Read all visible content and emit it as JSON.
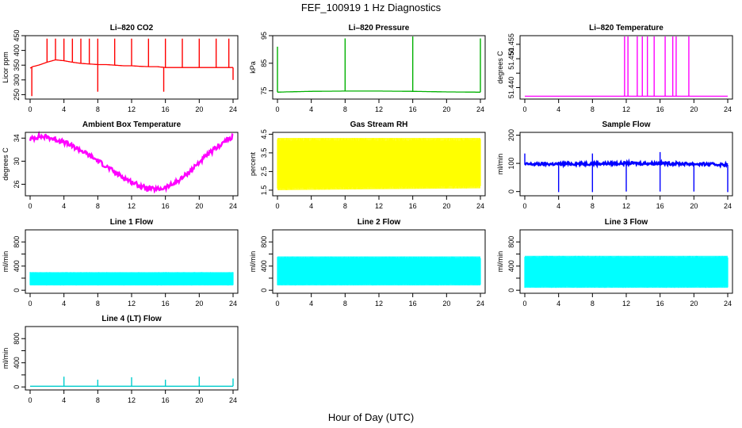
{
  "figure": {
    "title": "FEF_100919  1 Hz Diagnostics",
    "xlabel": "Hour of Day (UTC)"
  },
  "chart_data": [
    {
      "type": "line",
      "title": "Li–820 CO2",
      "ylabel": "Licor ppm",
      "color": "#ff0000",
      "xlim": [
        0,
        24
      ],
      "xticks": [
        0,
        4,
        8,
        12,
        16,
        20,
        24
      ],
      "ylim": [
        235,
        450
      ],
      "yticks": [
        250,
        300,
        350,
        400,
        450
      ],
      "grid": false,
      "x": [
        0,
        0.3,
        1,
        2,
        3,
        4,
        5,
        6,
        7,
        8,
        9,
        10,
        11,
        12,
        13,
        14,
        15,
        16,
        17,
        18,
        19,
        20,
        21,
        22,
        23,
        24
      ],
      "y": [
        340,
        345,
        350,
        360,
        368,
        365,
        360,
        356,
        354,
        352,
        352,
        350,
        348,
        348,
        346,
        345,
        345,
        342,
        342,
        342,
        342,
        342,
        342,
        342,
        342,
        342
      ],
      "spikes": [
        {
          "x": 2,
          "y": 440
        },
        {
          "x": 3,
          "y": 440
        },
        {
          "x": 4,
          "y": 440
        },
        {
          "x": 5,
          "y": 440
        },
        {
          "x": 6,
          "y": 440
        },
        {
          "x": 7,
          "y": 440
        },
        {
          "x": 8,
          "y": 440
        },
        {
          "x": 10,
          "y": 440
        },
        {
          "x": 12,
          "y": 440
        },
        {
          "x": 14,
          "y": 440
        },
        {
          "x": 16,
          "y": 440
        },
        {
          "x": 18,
          "y": 440
        },
        {
          "x": 20,
          "y": 440
        },
        {
          "x": 22,
          "y": 440
        },
        {
          "x": 23.5,
          "y": 440
        }
      ],
      "dips": [
        {
          "x": 0.2,
          "y": 245
        },
        {
          "x": 8,
          "y": 260
        },
        {
          "x": 15.8,
          "y": 260
        },
        {
          "x": 24,
          "y": 300
        }
      ]
    },
    {
      "type": "line",
      "title": "Li–820 Pressure",
      "ylabel": "kPa",
      "color": "#00b000",
      "xlim": [
        0,
        24
      ],
      "xticks": [
        0,
        4,
        8,
        12,
        16,
        20,
        24
      ],
      "ylim": [
        72,
        95
      ],
      "yticks": [
        75,
        85,
        95
      ],
      "grid": false,
      "x": [
        0,
        1,
        4,
        8,
        12,
        16,
        20,
        24
      ],
      "y": [
        74.5,
        74.6,
        74.8,
        74.9,
        74.9,
        74.8,
        74.6,
        74.5
      ],
      "spikes": [
        {
          "x": 0,
          "y": 91
        },
        {
          "x": 8,
          "y": 94
        },
        {
          "x": 16,
          "y": 95
        },
        {
          "x": 24,
          "y": 94
        }
      ],
      "dips": []
    },
    {
      "type": "line",
      "title": "Li–820 Temperature",
      "ylabel": "degrees C",
      "color": "#ff00ff",
      "xlim": [
        0,
        24
      ],
      "xticks": [
        0,
        4,
        8,
        12,
        16,
        20,
        24
      ],
      "ylim": [
        51.436,
        51.458
      ],
      "yticks": [
        51.44,
        51.445,
        51.45,
        51.455
      ],
      "yticklabels": [
        "51.440",
        "",
        "51.450",
        "51.455"
      ],
      "grid": false,
      "x": [
        0,
        24
      ],
      "y": [
        51.437,
        51.437
      ],
      "spikes": [
        {
          "x": 11.8,
          "y": 51.458
        },
        {
          "x": 12.2,
          "y": 51.458
        },
        {
          "x": 13.3,
          "y": 51.458
        },
        {
          "x": 13.9,
          "y": 51.458
        },
        {
          "x": 14.5,
          "y": 51.458
        },
        {
          "x": 15.3,
          "y": 51.458
        },
        {
          "x": 16.6,
          "y": 51.458
        },
        {
          "x": 17.5,
          "y": 51.458
        },
        {
          "x": 17.9,
          "y": 51.458
        },
        {
          "x": 19.4,
          "y": 51.458
        }
      ],
      "dips": []
    },
    {
      "type": "line",
      "title": "Ambient Box Temperature",
      "ylabel": "degrees C",
      "color": "#ff00ff",
      "xlim": [
        0,
        24
      ],
      "xticks": [
        0,
        4,
        8,
        12,
        16,
        20,
        24
      ],
      "ylim": [
        24,
        35
      ],
      "yticks": [
        26,
        30,
        34
      ],
      "grid": false,
      "x": [
        0,
        1,
        2,
        3,
        4,
        5,
        6,
        7,
        8,
        9,
        10,
        11,
        12,
        13,
        14,
        15,
        16,
        17,
        18,
        19,
        20,
        21,
        22,
        23,
        24
      ],
      "y": [
        33.8,
        34.3,
        34.2,
        33.8,
        33.3,
        32.6,
        31.9,
        31.0,
        30.1,
        29.1,
        28.1,
        27.2,
        26.4,
        25.7,
        25.2,
        25.1,
        25.4,
        26.1,
        27.1,
        28.4,
        29.8,
        31.1,
        32.3,
        33.4,
        34.3
      ],
      "noise": 0.8,
      "spikes": [],
      "dips": []
    },
    {
      "type": "area",
      "title": "Gas Stream RH",
      "ylabel": "percent",
      "color": "#ffff00",
      "xlim": [
        0,
        24
      ],
      "xticks": [
        0,
        4,
        8,
        12,
        16,
        20,
        24
      ],
      "ylim": [
        1.2,
        4.6
      ],
      "yticks": [
        1.5,
        2.5,
        3.5,
        4.5
      ],
      "grid": false,
      "x": [
        0,
        24
      ],
      "upper": [
        4.3,
        4.3
      ],
      "lower": [
        1.5,
        1.6
      ],
      "spikes": [],
      "dips": []
    },
    {
      "type": "line",
      "title": "Sample Flow",
      "ylabel": "ml/min",
      "color": "#0000ff",
      "xlim": [
        0,
        24
      ],
      "xticks": [
        0,
        4,
        8,
        12,
        16,
        20,
        24
      ],
      "ylim": [
        -15,
        210
      ],
      "yticks": [
        0,
        100,
        200
      ],
      "grid": false,
      "x": [
        0,
        4,
        8,
        12,
        16,
        20,
        24
      ],
      "y": [
        97,
        98,
        99,
        100,
        100,
        98,
        95
      ],
      "noise": 10,
      "spikes": [
        {
          "x": 0,
          "y": 135
        },
        {
          "x": 8,
          "y": 135
        },
        {
          "x": 16,
          "y": 140
        }
      ],
      "dips": [
        {
          "x": 4,
          "y": -2
        },
        {
          "x": 8,
          "y": -2
        },
        {
          "x": 12,
          "y": 0
        },
        {
          "x": 16,
          "y": 0
        },
        {
          "x": 20,
          "y": 0
        },
        {
          "x": 24,
          "y": -2
        }
      ]
    },
    {
      "type": "area",
      "title": "Line 1 Flow",
      "ylabel": "ml/min",
      "color": "#00ffff",
      "xlim": [
        0,
        24
      ],
      "xticks": [
        0,
        4,
        8,
        12,
        16,
        20,
        24
      ],
      "ylim": [
        -50,
        1000
      ],
      "yticks": [
        0,
        200,
        400,
        600,
        800
      ],
      "yticklabels": [
        "0",
        "",
        "400",
        "",
        "800"
      ],
      "grid": false,
      "x": [
        0,
        24
      ],
      "upper": [
        300,
        300
      ],
      "lower": [
        80,
        80
      ],
      "spikes": [],
      "dips": []
    },
    {
      "type": "area",
      "title": "Line 2 Flow",
      "ylabel": "ml/min",
      "color": "#00ffff",
      "xlim": [
        0,
        24
      ],
      "xticks": [
        0,
        4,
        8,
        12,
        16,
        20,
        24
      ],
      "ylim": [
        -50,
        1000
      ],
      "yticks": [
        0,
        200,
        400,
        600,
        800
      ],
      "yticklabels": [
        "0",
        "",
        "400",
        "",
        "800"
      ],
      "grid": false,
      "x": [
        0,
        24
      ],
      "upper": [
        560,
        560
      ],
      "lower": [
        80,
        80
      ],
      "spikes": [],
      "dips": []
    },
    {
      "type": "area",
      "title": "Line 3 Flow",
      "ylabel": "ml/min",
      "color": "#00ffff",
      "xlim": [
        0,
        24
      ],
      "xticks": [
        0,
        4,
        8,
        12,
        16,
        20,
        24
      ],
      "ylim": [
        -50,
        1000
      ],
      "yticks": [
        0,
        200,
        400,
        600,
        800
      ],
      "yticklabels": [
        "0",
        "",
        "400",
        "",
        "800"
      ],
      "grid": false,
      "x": [
        0,
        24
      ],
      "upper": [
        570,
        570
      ],
      "lower": [
        40,
        40
      ],
      "spikes": [],
      "dips": []
    },
    {
      "type": "line",
      "title": "Line 4 (LT) Flow",
      "ylabel": "ml/min",
      "color": "#00cccc",
      "xlim": [
        0,
        24
      ],
      "xticks": [
        0,
        4,
        8,
        12,
        16,
        20,
        24
      ],
      "ylim": [
        -50,
        1000
      ],
      "yticks": [
        0,
        200,
        400,
        600,
        800
      ],
      "yticklabels": [
        "0",
        "",
        "400",
        "",
        "800"
      ],
      "grid": false,
      "x": [
        0,
        24
      ],
      "y": [
        12,
        12
      ],
      "spikes": [
        {
          "x": 4,
          "y": 170
        },
        {
          "x": 8,
          "y": 120
        },
        {
          "x": 12,
          "y": 160
        },
        {
          "x": 16,
          "y": 120
        },
        {
          "x": 20,
          "y": 170
        },
        {
          "x": 24,
          "y": 140
        }
      ],
      "dips": []
    }
  ]
}
